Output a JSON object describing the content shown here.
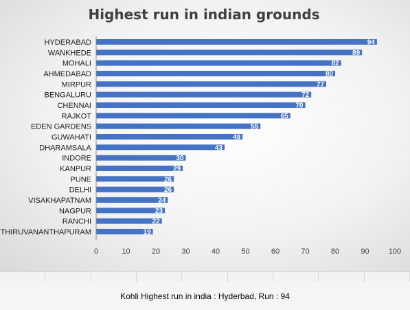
{
  "chart_data": {
    "type": "bar",
    "orientation": "horizontal",
    "title": "Highest run in indian grounds",
    "xlabel": "",
    "ylabel": "",
    "xlim": [
      0,
      100
    ],
    "x_ticks": [
      0,
      10,
      20,
      30,
      40,
      50,
      60,
      70,
      80,
      90,
      100
    ],
    "grid": false,
    "legend": "none",
    "bar_color": "#4472c4",
    "categories": [
      "HYDERABAD",
      "WANKHEDE",
      "MOHALI",
      "AHMEDABAD",
      "MIRPUR",
      "BENGALURU",
      "CHENNAI",
      "RAJKOT",
      "EDEN GARDENS",
      "GUWAHATI",
      "DHARAMSALA",
      "INDORE",
      "KANPUR",
      "PUNE",
      "DELHI",
      "VISAKHAPATNAM",
      "NAGPUR",
      "RANCHI",
      "THIRUVANANTHAPURAM"
    ],
    "values": [
      94,
      89,
      82,
      80,
      77,
      72,
      70,
      65,
      55,
      49,
      43,
      30,
      29,
      26,
      26,
      24,
      23,
      22,
      19
    ]
  },
  "caption": "Kohli Highest run in india : Hyderbad, Run : 94"
}
